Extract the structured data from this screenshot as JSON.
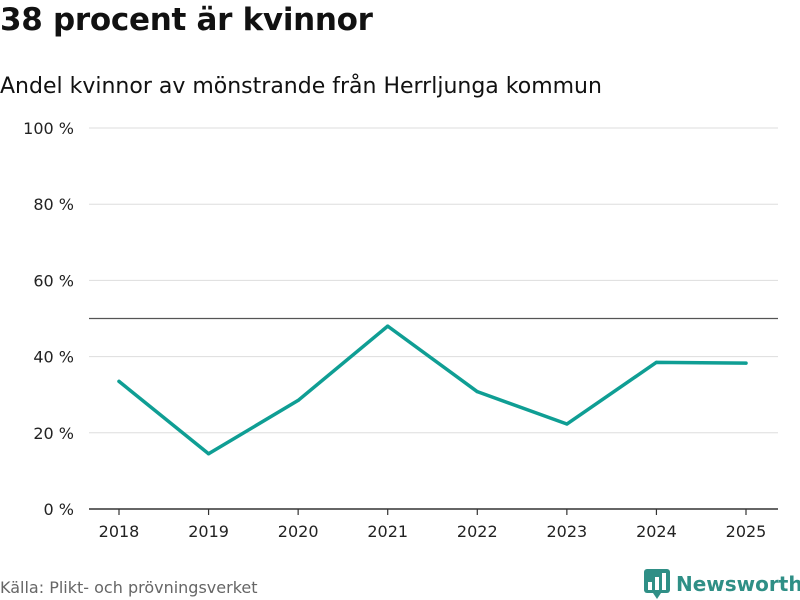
{
  "header": {
    "title": "38 procent är kvinnor",
    "subtitle": "Andel kvinnor av mönstrande från Herrljunga kommun"
  },
  "footer": {
    "source": "Källa: Plikt- och prövningsverket",
    "brand": "Newsworthy",
    "brand_icon": "bar-chart-logo-icon"
  },
  "colors": {
    "line": "#0f9e94",
    "grid": "#dddddd",
    "reference": "#555555",
    "axis": "#333333",
    "brand": "#2f8f86"
  },
  "chart_data": {
    "type": "line",
    "title": "38 procent är kvinnor",
    "subtitle": "Andel kvinnor av mönstrande från Herrljunga kommun",
    "xlabel": "",
    "ylabel": "",
    "categories": [
      "2018",
      "2019",
      "2020",
      "2021",
      "2022",
      "2023",
      "2024",
      "2025"
    ],
    "series": [
      {
        "name": "Andel kvinnor",
        "values": [
          33.5,
          14.5,
          28.5,
          48,
          30.8,
          22.3,
          38.5,
          38.3
        ]
      }
    ],
    "ylim": [
      0,
      100
    ],
    "yticks": [
      0,
      20,
      40,
      60,
      80,
      100
    ],
    "ytick_labels": [
      "0 %",
      "20 %",
      "40 %",
      "60 %",
      "80 %",
      "100 %"
    ],
    "reference_line": 50,
    "grid": true,
    "legend": "none"
  }
}
